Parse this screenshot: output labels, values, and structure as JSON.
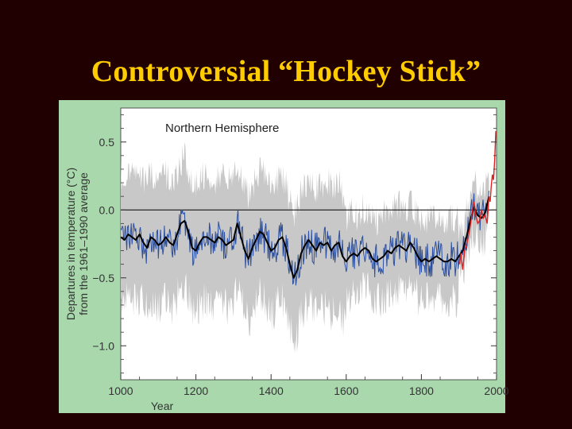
{
  "slide": {
    "title": "Controversial “Hockey Stick”"
  },
  "chart_data": {
    "type": "line",
    "title": "Northern Hemisphere",
    "xlabel": "Year",
    "ylabel_line1": "Departures in temperature (°C)",
    "ylabel_line2": "from the 1961–1990 average",
    "xlim": [
      1000,
      2000
    ],
    "ylim": [
      -1.25,
      0.75
    ],
    "xticks": [
      1000,
      1200,
      1400,
      1600,
      1800,
      2000
    ],
    "yticks": [
      0.5,
      0.0,
      -0.5,
      -1.0
    ],
    "xtick_labels": [
      "1000",
      "1200",
      "1400",
      "1600",
      "1800",
      "2000"
    ],
    "ytick_labels": [
      "0.5",
      "0.0",
      "−0.5",
      "−1.0"
    ],
    "reference_line": 0.0,
    "colors": {
      "reconstruction": "#2A4FA0",
      "smoothed": "#000000",
      "uncertainty": "#C8C8C8",
      "instrumental": "#E02020",
      "panel_bg": "#FFFFFF",
      "frame_bg": "#A8D8AC",
      "title_text": "#FFCC00"
    },
    "series": [
      {
        "kind": "smoothed",
        "x": [
          1000,
          1010,
          1020,
          1030,
          1040,
          1050,
          1060,
          1070,
          1080,
          1090,
          1100,
          1110,
          1120,
          1130,
          1140,
          1150,
          1160,
          1170,
          1180,
          1190,
          1200,
          1210,
          1220,
          1230,
          1240,
          1250,
          1260,
          1270,
          1280,
          1290,
          1300,
          1310,
          1320,
          1330,
          1340,
          1350,
          1360,
          1370,
          1380,
          1390,
          1400,
          1410,
          1420,
          1430,
          1440,
          1450,
          1460,
          1470,
          1480,
          1490,
          1500,
          1510,
          1520,
          1530,
          1540,
          1550,
          1560,
          1570,
          1580,
          1590,
          1600,
          1610,
          1620,
          1630,
          1640,
          1650,
          1660,
          1670,
          1680,
          1690,
          1700,
          1710,
          1720,
          1730,
          1740,
          1750,
          1760,
          1770,
          1780,
          1790,
          1800,
          1810,
          1820,
          1830,
          1840,
          1850,
          1860,
          1870,
          1880,
          1890,
          1900,
          1910,
          1920,
          1930,
          1940,
          1950,
          1960,
          1970,
          1980
        ],
        "y": [
          -0.2,
          -0.22,
          -0.18,
          -0.2,
          -0.22,
          -0.18,
          -0.24,
          -0.28,
          -0.2,
          -0.22,
          -0.26,
          -0.24,
          -0.2,
          -0.24,
          -0.26,
          -0.18,
          -0.1,
          -0.08,
          -0.16,
          -0.28,
          -0.3,
          -0.24,
          -0.2,
          -0.2,
          -0.22,
          -0.24,
          -0.2,
          -0.22,
          -0.26,
          -0.24,
          -0.22,
          -0.1,
          -0.2,
          -0.3,
          -0.36,
          -0.28,
          -0.22,
          -0.16,
          -0.18,
          -0.24,
          -0.3,
          -0.28,
          -0.22,
          -0.2,
          -0.28,
          -0.4,
          -0.5,
          -0.44,
          -0.32,
          -0.26,
          -0.22,
          -0.26,
          -0.3,
          -0.24,
          -0.26,
          -0.24,
          -0.3,
          -0.26,
          -0.24,
          -0.34,
          -0.38,
          -0.34,
          -0.32,
          -0.34,
          -0.3,
          -0.28,
          -0.3,
          -0.36,
          -0.38,
          -0.36,
          -0.34,
          -0.3,
          -0.32,
          -0.28,
          -0.26,
          -0.28,
          -0.3,
          -0.24,
          -0.28,
          -0.34,
          -0.38,
          -0.36,
          -0.38,
          -0.36,
          -0.34,
          -0.36,
          -0.38,
          -0.38,
          -0.36,
          -0.38,
          -0.34,
          -0.3,
          -0.2,
          -0.08,
          0.02,
          -0.04,
          -0.06,
          -0.02,
          0.1
        ]
      },
      {
        "kind": "instrumental",
        "x": [
          1902,
          1905,
          1910,
          1915,
          1920,
          1925,
          1930,
          1935,
          1940,
          1945,
          1950,
          1955,
          1960,
          1965,
          1970,
          1975,
          1980,
          1983,
          1986,
          1989,
          1992,
          1995,
          1998
        ],
        "y": [
          -0.4,
          -0.32,
          -0.44,
          -0.3,
          -0.26,
          -0.2,
          -0.12,
          -0.02,
          0.06,
          -0.04,
          -0.1,
          -0.08,
          0.0,
          -0.06,
          -0.04,
          -0.1,
          0.1,
          0.06,
          0.18,
          0.26,
          0.22,
          0.36,
          0.58
        ]
      }
    ]
  }
}
